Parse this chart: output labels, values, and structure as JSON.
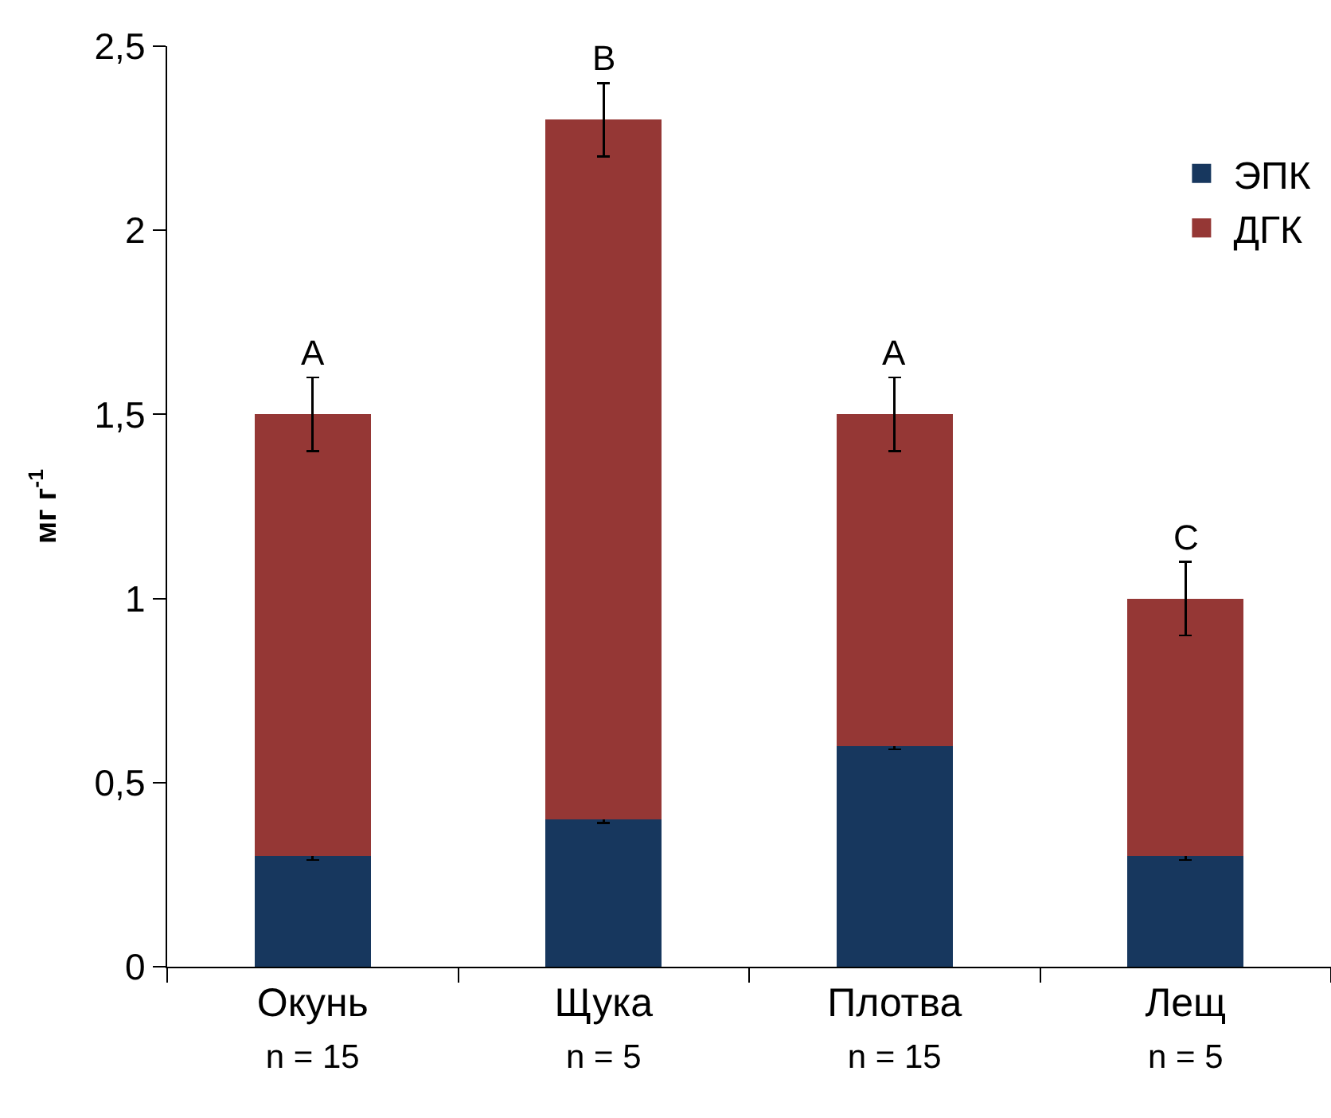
{
  "chart_data": {
    "type": "bar",
    "stacked": true,
    "ylabel": "мг г$^{-1}$",
    "categories": [
      "Окунь\nn = 15",
      "Щука\nn = 5",
      "Плотва\nn = 15",
      "Лещ\nn = 5"
    ],
    "series": [
      {
        "name": "ЭПК",
        "color": "#17375e",
        "values": [
          0.3,
          0.4,
          0.6,
          0.3
        ],
        "errors": [
          0.01,
          0.01,
          0.01,
          0.01
        ]
      },
      {
        "name": "ДГК",
        "color": "#953735",
        "values": [
          1.2,
          1.9,
          0.9,
          0.7
        ],
        "errors": [
          0.1,
          0.1,
          0.1,
          0.1
        ]
      }
    ],
    "ylim": [
      0,
      2.5
    ],
    "yticks": [
      0,
      {
        "value": 0.5,
        "label": "0,5"
      },
      1,
      {
        "value": 1.5,
        "label": "1,5"
      },
      2,
      {
        "value": 2.5,
        "label": "2,5"
      }
    ],
    "legend": "top right",
    "annotations": [
      {
        "text": "A",
        "x": "Окунь\nn = 15",
        "y": 1.6
      },
      {
        "text": "B",
        "x": "Щука\nn = 5",
        "y": 2.4
      },
      {
        "text": "A",
        "x": "Плотва\nn = 15",
        "y": 1.6
      },
      {
        "text": "C",
        "x": "Лещ\nn = 5",
        "y": 1.1
      }
    ]
  }
}
